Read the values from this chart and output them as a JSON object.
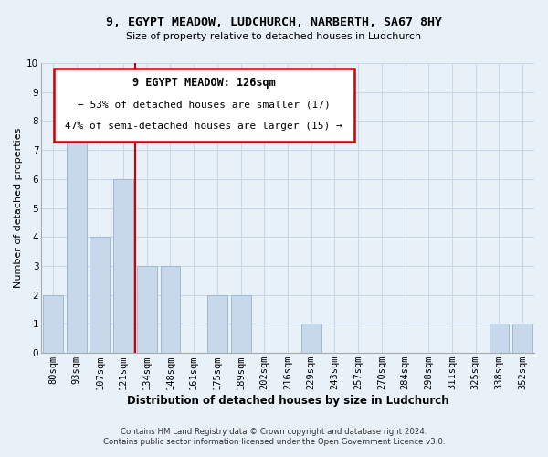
{
  "title": "9, EGYPT MEADOW, LUDCHURCH, NARBERTH, SA67 8HY",
  "subtitle": "Size of property relative to detached houses in Ludchurch",
  "xlabel": "Distribution of detached houses by size in Ludchurch",
  "ylabel": "Number of detached properties",
  "bar_labels": [
    "80sqm",
    "93sqm",
    "107sqm",
    "121sqm",
    "134sqm",
    "148sqm",
    "161sqm",
    "175sqm",
    "189sqm",
    "202sqm",
    "216sqm",
    "229sqm",
    "243sqm",
    "257sqm",
    "270sqm",
    "284sqm",
    "298sqm",
    "311sqm",
    "325sqm",
    "338sqm",
    "352sqm"
  ],
  "bar_heights": [
    2,
    8,
    4,
    6,
    3,
    3,
    0,
    2,
    2,
    0,
    0,
    1,
    0,
    0,
    0,
    0,
    0,
    0,
    0,
    1,
    1
  ],
  "bar_color": "#c8d8eb",
  "bar_edge_color": "#9ab4cc",
  "vline_x": 3.5,
  "vline_color": "#cc0000",
  "ylim": [
    0,
    10
  ],
  "yticks": [
    0,
    1,
    2,
    3,
    4,
    5,
    6,
    7,
    8,
    9,
    10
  ],
  "annotation_title": "9 EGYPT MEADOW: 126sqm",
  "annotation_line1": "← 53% of detached houses are smaller (17)",
  "annotation_line2": "47% of semi-detached houses are larger (15) →",
  "annotation_box_color": "#ffffff",
  "annotation_box_edge": "#cc0000",
  "footer_line1": "Contains HM Land Registry data © Crown copyright and database right 2024.",
  "footer_line2": "Contains public sector information licensed under the Open Government Licence v3.0.",
  "grid_color": "#c8d8e8",
  "background_color": "#e8f0f8",
  "title_fontsize": 9.5,
  "subtitle_fontsize": 8.0,
  "xlabel_fontsize": 8.5,
  "ylabel_fontsize": 8.0,
  "tick_fontsize": 7.5,
  "footer_fontsize": 6.2
}
